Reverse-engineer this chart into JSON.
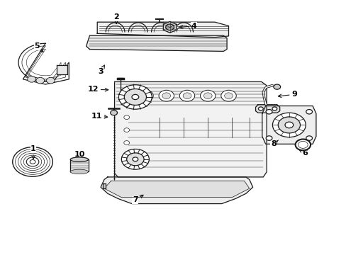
{
  "background_color": "#ffffff",
  "line_color": "#1a1a1a",
  "fig_width": 4.89,
  "fig_height": 3.6,
  "dpi": 100,
  "label_positions": {
    "1": [
      0.095,
      0.415,
      0.095,
      0.365
    ],
    "2": [
      0.335,
      0.935,
      0.335,
      0.905
    ],
    "3": [
      0.29,
      0.72,
      0.305,
      0.755
    ],
    "4": [
      0.56,
      0.9,
      0.51,
      0.893
    ],
    "5": [
      0.105,
      0.82,
      0.13,
      0.79
    ],
    "6": [
      0.88,
      0.4,
      0.858,
      0.415
    ],
    "7": [
      0.39,
      0.215,
      0.42,
      0.24
    ],
    "8": [
      0.79,
      0.435,
      0.808,
      0.455
    ],
    "9": [
      0.85,
      0.63,
      0.795,
      0.622
    ],
    "10": [
      0.23,
      0.395,
      0.23,
      0.37
    ],
    "11": [
      0.278,
      0.545,
      0.318,
      0.54
    ],
    "12": [
      0.268,
      0.65,
      0.32,
      0.648
    ]
  }
}
